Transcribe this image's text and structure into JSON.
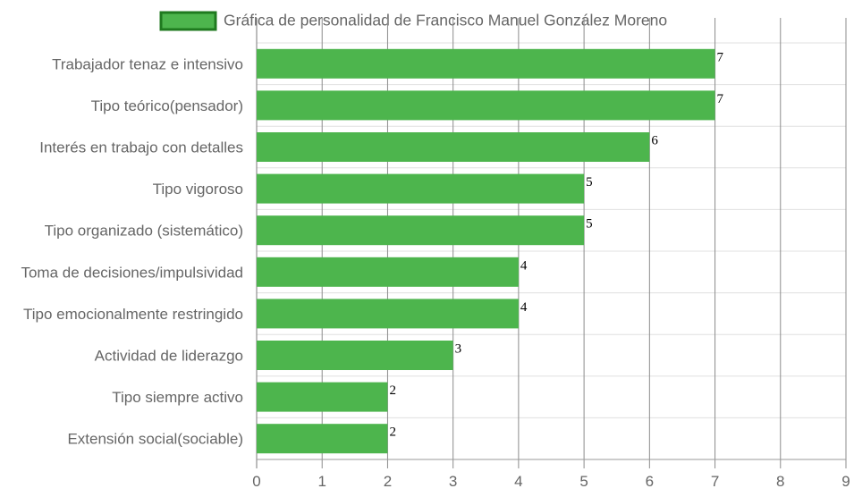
{
  "chart_data": {
    "type": "bar",
    "orientation": "horizontal",
    "legend": {
      "position": "top",
      "entries": [
        "Gráfica de personalidad de Francisco Manuel González Moreno"
      ]
    },
    "series": [
      {
        "name": "Gráfica de personalidad de Francisco Manuel González Moreno",
        "color": "#4db54d",
        "border_color": "#1f7a1f",
        "values": [
          7,
          7,
          6,
          5,
          5,
          4,
          4,
          3,
          2,
          2
        ]
      }
    ],
    "categories": [
      "Trabajador tenaz e intensivo",
      "Tipo teórico(pensador)",
      "Interés en trabajo con detalles",
      "Tipo vigoroso",
      "Tipo organizado (sistemático)",
      "Toma de decisiones/impulsividad",
      "Tipo emocionalmente restringido",
      "Actividad de liderazgo",
      "Tipo siempre activo",
      "Extensión social(sociable)"
    ],
    "value_labels": [
      "7",
      "7",
      "6",
      "5",
      "5",
      "4",
      "4",
      "3",
      "2",
      "2"
    ],
    "xlim": [
      0,
      9
    ],
    "x_ticks": [
      "0",
      "1",
      "2",
      "3",
      "4",
      "5",
      "6",
      "7",
      "8",
      "9"
    ],
    "grid": true,
    "grid_color": "#e0e0e0",
    "vertical_grid_color": "#8c8c8c"
  }
}
